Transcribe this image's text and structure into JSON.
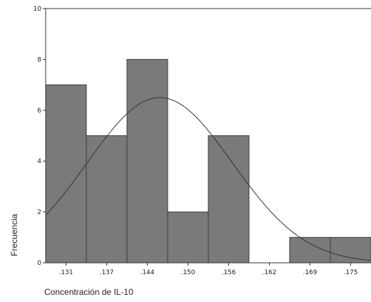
{
  "chart_data": {
    "type": "bar",
    "subtype": "histogram-with-normal-curve",
    "title": "",
    "xlabel": "Concentración de IL-10",
    "ylabel": "Frecuencia",
    "x_tick_labels": [
      ".131",
      ".137",
      ".144",
      ".150",
      ".156",
      ".162",
      ".169",
      ".175"
    ],
    "x_tick_values": [
      0.131,
      0.137,
      0.144,
      0.15,
      0.156,
      0.162,
      0.169,
      0.175
    ],
    "xlim": [
      0.128,
      0.178
    ],
    "ylim": [
      0,
      10
    ],
    "y_ticks": [
      0,
      2,
      4,
      6,
      8,
      10
    ],
    "bins": [
      {
        "center": 0.131,
        "count": 7
      },
      {
        "center": 0.137,
        "count": 5
      },
      {
        "center": 0.144,
        "count": 8
      },
      {
        "center": 0.15,
        "count": 2
      },
      {
        "center": 0.156,
        "count": 5
      },
      {
        "center": 0.162,
        "count": 0
      },
      {
        "center": 0.169,
        "count": 1
      },
      {
        "center": 0.175,
        "count": 1
      }
    ],
    "normal_curve": {
      "mean": 0.1455,
      "std_dev": 0.0112,
      "peak": 6.5
    },
    "grid": false,
    "legend": "none",
    "colors": {
      "bar_fill": "#7a7a7a",
      "bar_stroke": "#3a3a3a",
      "curve": "#333333",
      "axis": "#333333"
    }
  }
}
